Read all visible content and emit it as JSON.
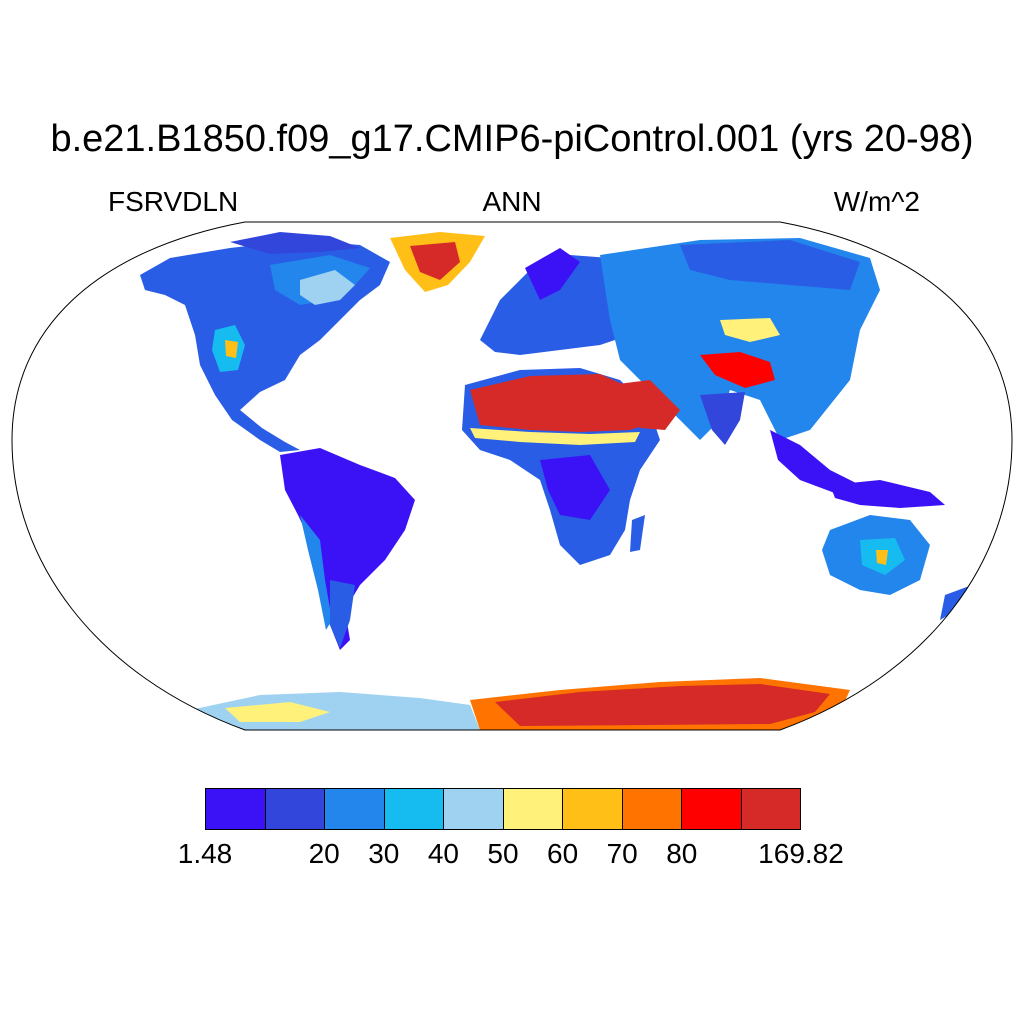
{
  "title": "b.e21.B1850.f09_g17.CMIP6-piControl.001 (yrs 20-98)",
  "left_label": "FSRVDLN",
  "center_label": "ANN",
  "right_label": "W/m^2",
  "colorbar": {
    "colors": [
      "#3b12f5",
      "#3246dc",
      "#2386ec",
      "#16bcf0",
      "#9fd2f0",
      "#fff17a",
      "#ffbf17",
      "#ff7300",
      "#ff0000",
      "#d52a27"
    ],
    "labels": [
      "1.48",
      "20",
      "30",
      "40",
      "50",
      "60",
      "70",
      "80",
      "169.82"
    ]
  },
  "map": {
    "projection": "Robinson",
    "ocean_color": "#ffffff",
    "outline_color": "#000000"
  }
}
